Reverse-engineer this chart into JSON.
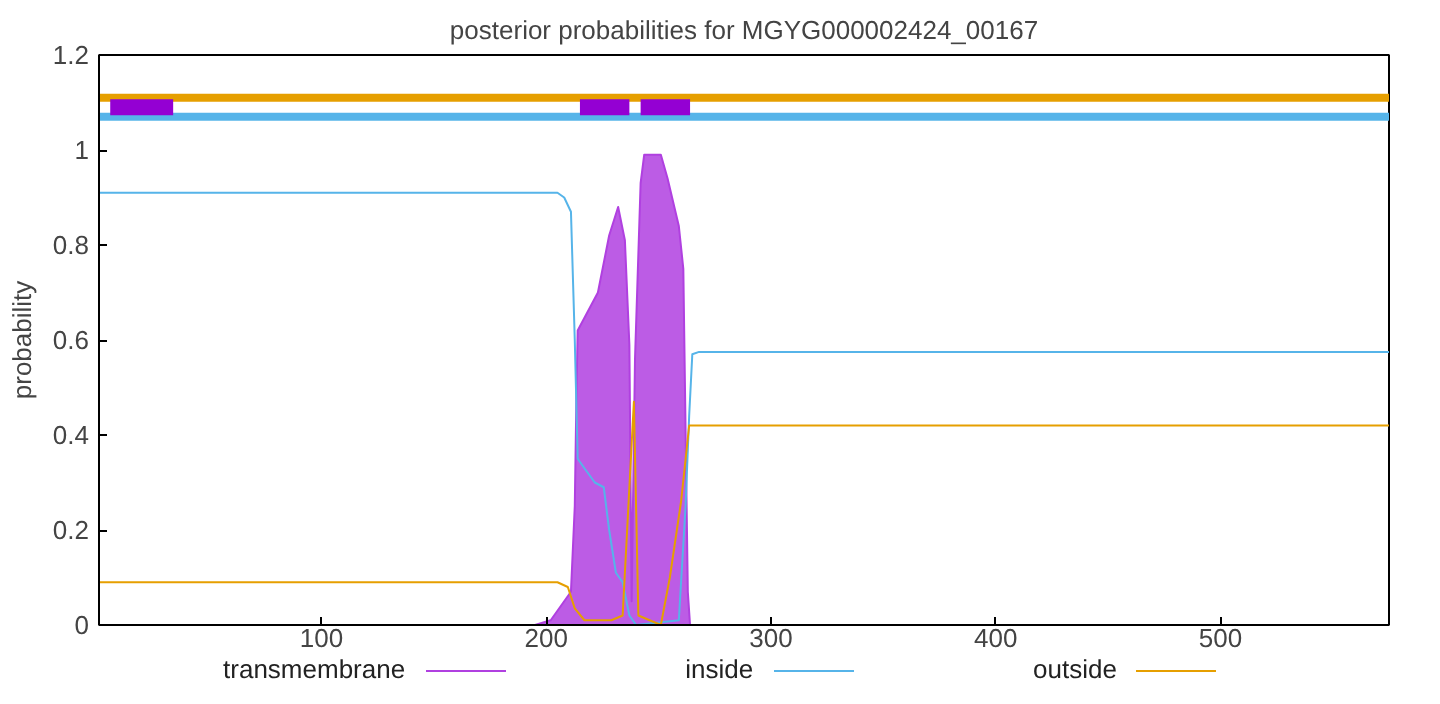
{
  "chart_data": {
    "type": "line",
    "title": "posterior probabilities for MGYG000002424_00167",
    "ylabel": "probability",
    "xlim": [
      1,
      575
    ],
    "ylim": [
      0,
      1.2
    ],
    "xticks": [
      100,
      200,
      300,
      400,
      500
    ],
    "yticks": [
      0,
      0.2,
      0.4,
      0.6,
      0.8,
      1,
      1.2
    ],
    "grid": false,
    "legend": "bottom",
    "series": [
      {
        "name": "transmembrane",
        "type": "area",
        "color": "#b040e0",
        "x": [
          1,
          195,
          202,
          211,
          212.7,
          213.5,
          214,
          223,
          228,
          232,
          235,
          237,
          238,
          239.5,
          242,
          243.6,
          251,
          254,
          259,
          261,
          263,
          264,
          575
        ],
        "values": [
          0,
          0,
          0.01,
          0.07,
          0.25,
          0.5,
          0.62,
          0.7,
          0.82,
          0.88,
          0.81,
          0.59,
          0.05,
          0.56,
          0.93,
          0.99,
          0.99,
          0.94,
          0.84,
          0.75,
          0.07,
          0,
          0
        ]
      },
      {
        "name": "inside",
        "color": "#56b4e9",
        "x": [
          1,
          205,
          208,
          211,
          212.7,
          214,
          217,
          221.6,
          225.6,
          228,
          231,
          234,
          237,
          240,
          259,
          262,
          263.6,
          265,
          268,
          575
        ],
        "values": [
          0.91,
          0.91,
          0.9,
          0.87,
          0.6,
          0.35,
          0.33,
          0.3,
          0.29,
          0.2,
          0.11,
          0.09,
          0.02,
          0,
          0.01,
          0.25,
          0.44,
          0.57,
          0.575,
          0.575
        ]
      },
      {
        "name": "outside",
        "color": "#e69f00",
        "x": [
          1,
          205,
          209.6,
          212.7,
          217,
          229,
          234,
          239,
          241,
          251,
          255,
          260,
          263.6,
          266,
          575
        ],
        "values": [
          0.09,
          0.09,
          0.08,
          0.035,
          0.01,
          0.01,
          0.02,
          0.47,
          0.02,
          0,
          0.1,
          0.26,
          0.42,
          0.42,
          0.42
        ]
      },
      {
        "color": "#e69f00",
        "x": [
          1,
          575
        ],
        "values": [
          1.11,
          1.11
        ]
      },
      {
        "color": "#56b4e9",
        "x": [
          1,
          575
        ],
        "values": [
          1.07,
          1.07
        ]
      },
      {
        "color": "#9400d3",
        "x": [
          6,
          34,
          35,
          215,
          237,
          238,
          242,
          264
        ],
        "values": [
          1.09,
          1.09,
          null,
          1.09,
          1.09,
          null,
          1.09,
          1.09
        ]
      }
    ]
  }
}
